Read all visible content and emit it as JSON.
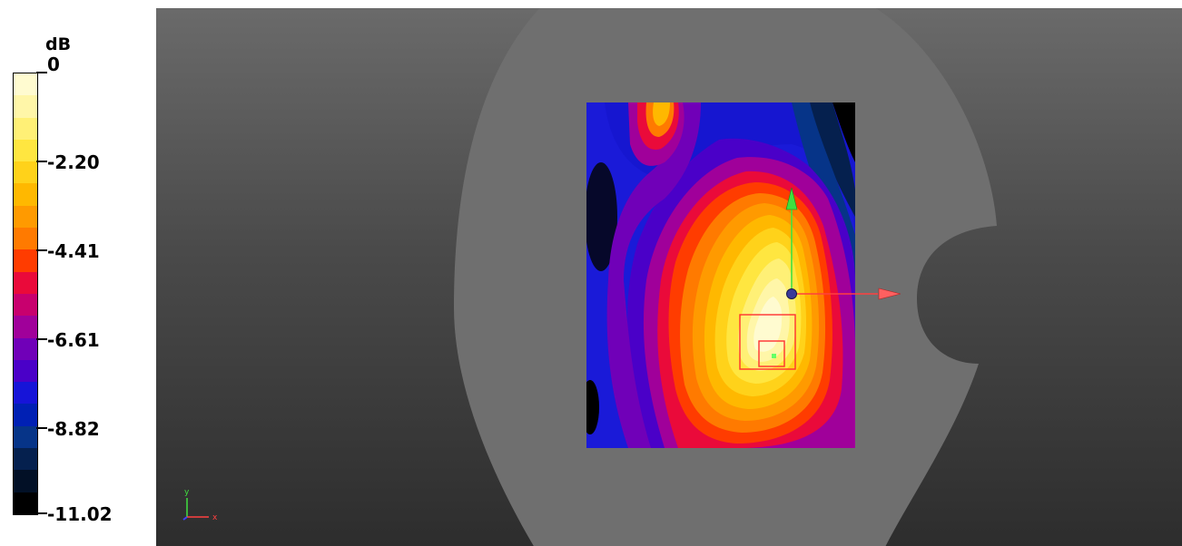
{
  "legend": {
    "unit": "dB",
    "ticks": [
      "0",
      "-2.20",
      "-4.41",
      "-6.61",
      "-8.82",
      "-11.02"
    ],
    "swatches": [
      "#fffbd0",
      "#fff6a8",
      "#fff076",
      "#ffe640",
      "#ffd21a",
      "#ffb800",
      "#ff9a00",
      "#ff7a00",
      "#ff3c00",
      "#ea0a3a",
      "#c8006e",
      "#a0009a",
      "#7000b8",
      "#4a00c8",
      "#1614d8",
      "#0020b4",
      "#063488",
      "#05204e",
      "#021026",
      "#000000"
    ]
  },
  "viewport": {
    "axes_triad": {
      "x_label": "x",
      "y_label": "y"
    }
  },
  "colors": {
    "phantom": "#6f6f6f",
    "background_top": "#6a6a6a",
    "background_bottom": "#2d2d2d",
    "cube_outline": "#ff3030",
    "x_axis_arrow": "#ff4040",
    "y_axis_arrow": "#40e040",
    "origin_marker": "#3a3a9a"
  }
}
